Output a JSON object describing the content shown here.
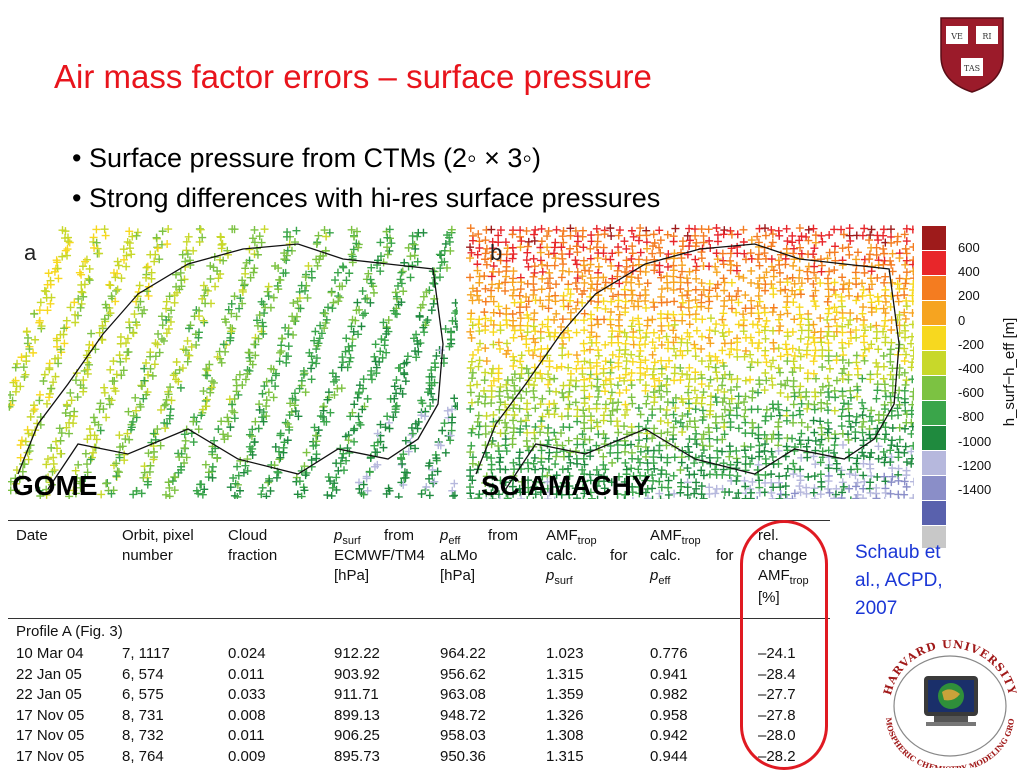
{
  "title": "Air mass factor errors – surface pressure",
  "bullets": [
    "• Surface pressure from CTMs (2◦ × 3◦)",
    "• Strong differences with hi-res surface pressures"
  ],
  "maps": {
    "a": {
      "letter": "a",
      "instrument": "GOME"
    },
    "b": {
      "letter": "b",
      "instrument": "SCIAMACHY"
    }
  },
  "colorbar": {
    "ticks": [
      "600",
      "400",
      "200",
      "0",
      "-200",
      "-400",
      "-600",
      "-800",
      "-1000",
      "-1200",
      "-1400"
    ],
    "label": "h_surf−h_eff [m]",
    "colors": [
      "#9e1b1b",
      "#e8262a",
      "#f47c20",
      "#f6a420",
      "#f7d81f",
      "#c8d82a",
      "#7cc242",
      "#3aa54a",
      "#1f8a3e",
      "#b6b8dd",
      "#8a8ec8",
      "#5961ad",
      "#c8c8c8"
    ]
  },
  "table": {
    "headers": {
      "date": "Date",
      "orbit": [
        "Orbit, pixel",
        "number"
      ],
      "cloud": [
        "Cloud",
        "fraction"
      ],
      "psurf": [
        "p",
        "surf",
        "from",
        "ECMWF/TM4",
        "[hPa]"
      ],
      "peff": [
        "p",
        "eff",
        "from",
        "aLMo",
        "[hPa]"
      ],
      "amf_psurf": [
        "AMF",
        "trop",
        "calc.",
        "for",
        "p",
        "surf"
      ],
      "amf_peff": [
        "AMF",
        "trop",
        "calc.",
        "for",
        "p",
        "eff"
      ],
      "rel": [
        "rel.",
        "change",
        "AMF",
        "trop",
        "[%]"
      ]
    },
    "section": "Profile A (Fig. 3)",
    "rows": [
      [
        "10 Mar 04",
        "7, 1117",
        "0.024",
        "912.22",
        "964.22",
        "1.023",
        "0.776",
        "–24.1"
      ],
      [
        "22 Jan 05",
        "6, 574",
        "0.011",
        "903.92",
        "956.62",
        "1.315",
        "0.941",
        "–28.4"
      ],
      [
        "22 Jan 05",
        "6, 575",
        "0.033",
        "911.71",
        "963.08",
        "1.359",
        "0.982",
        "–27.7"
      ],
      [
        "17 Nov 05",
        "8, 731",
        "0.008",
        "899.13",
        "948.72",
        "1.326",
        "0.958",
        "–27.8"
      ],
      [
        "17 Nov 05",
        "8, 732",
        "0.011",
        "906.25",
        "958.03",
        "1.308",
        "0.942",
        "–28.0"
      ],
      [
        "17 Nov 05",
        "8, 764",
        "0.009",
        "895.73",
        "950.36",
        "1.315",
        "0.944",
        "–28.2"
      ]
    ]
  },
  "citation": [
    "Schaub et",
    "al., ACPD,",
    "2007"
  ],
  "logos": {
    "shield_text": [
      "VE",
      "RI",
      "TAS"
    ],
    "seal_top": "HARVARD UNIVERSITY",
    "seal_bottom": "ATMOSPHERIC CHEMISTRY MODELING GROUP"
  }
}
